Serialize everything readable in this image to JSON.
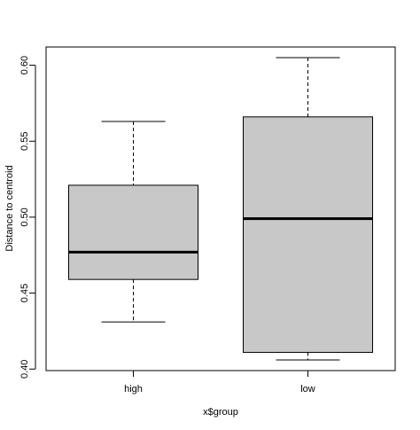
{
  "chart_data": {
    "type": "boxplot",
    "title": "",
    "xlabel": "x$group",
    "ylabel": "Distance to centroid",
    "ylim": [
      0.399,
      0.612
    ],
    "yticks": [
      "0.40",
      "0.45",
      "0.50",
      "0.55",
      "0.60"
    ],
    "grid": false,
    "box_fill": "#c8c8c8",
    "categories": [
      "high",
      "low"
    ],
    "boxes": [
      {
        "category": "high",
        "whisker_low": 0.431,
        "q1": 0.459,
        "median": 0.477,
        "q3": 0.521,
        "whisker_high": 0.563
      },
      {
        "category": "low",
        "whisker_low": 0.406,
        "q1": 0.411,
        "median": 0.499,
        "q3": 0.566,
        "whisker_high": 0.605
      }
    ]
  }
}
